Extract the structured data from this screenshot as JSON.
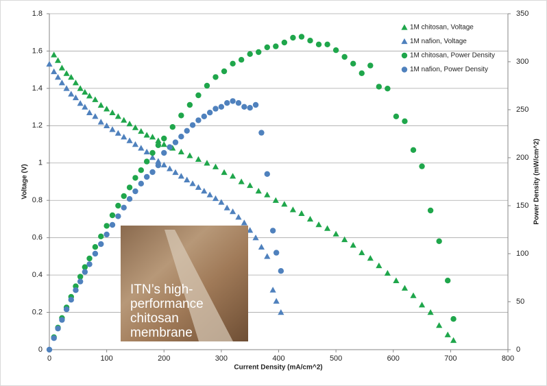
{
  "chart_data": {
    "type": "scatter",
    "xlabel": "Current Density (mA/cm^2)",
    "ylabel": "Voltage (V)",
    "y2label": "Power Density (mW/cm^2)",
    "xlim": [
      0,
      800
    ],
    "xticks": [
      0,
      100,
      200,
      300,
      400,
      500,
      600,
      700,
      800
    ],
    "ylim": [
      0,
      1.8
    ],
    "yticks": [
      0,
      0.2,
      0.4,
      0.6,
      0.8,
      1,
      1.2,
      1.4,
      1.6,
      1.8
    ],
    "y2lim": [
      0,
      350
    ],
    "y2ticks": [
      0,
      50,
      100,
      150,
      200,
      250,
      300,
      350
    ],
    "grid": true,
    "legend": "upper right",
    "annotation": [
      "ITN’s high-",
      "performance",
      "chitosan",
      "membrane"
    ],
    "series": [
      {
        "name": "1M chitosan, Voltage",
        "color": "#1fa64b",
        "marker": "triangle",
        "x": [
          8,
          15,
          22,
          30,
          38,
          46,
          54,
          62,
          70,
          80,
          90,
          100,
          110,
          120,
          130,
          140,
          150,
          160,
          170,
          180,
          190,
          200,
          215,
          230,
          245,
          260,
          275,
          290,
          305,
          320,
          335,
          350,
          365,
          380,
          395,
          410,
          425,
          440,
          455,
          470,
          485,
          500,
          515,
          530,
          545,
          560,
          575,
          590,
          605,
          620,
          635,
          650,
          665,
          680,
          695,
          705
        ],
        "values": [
          1.58,
          1.55,
          1.51,
          1.48,
          1.46,
          1.43,
          1.4,
          1.38,
          1.36,
          1.34,
          1.31,
          1.29,
          1.27,
          1.25,
          1.23,
          1.21,
          1.19,
          1.17,
          1.15,
          1.14,
          1.12,
          1.1,
          1.08,
          1.06,
          1.04,
          1.02,
          1,
          0.98,
          0.95,
          0.93,
          0.9,
          0.88,
          0.85,
          0.83,
          0.8,
          0.78,
          0.75,
          0.73,
          0.7,
          0.67,
          0.65,
          0.62,
          0.59,
          0.56,
          0.52,
          0.49,
          0.45,
          0.41,
          0.37,
          0.33,
          0.29,
          0.24,
          0.2,
          0.13,
          0.08,
          0.05
        ]
      },
      {
        "name": "1M nafion, Voltage",
        "color": "#4f81bd",
        "marker": "triangle",
        "x": [
          0,
          8,
          15,
          22,
          30,
          38,
          46,
          54,
          62,
          70,
          80,
          90,
          100,
          110,
          120,
          130,
          140,
          150,
          160,
          170,
          180,
          190,
          200,
          210,
          220,
          230,
          240,
          250,
          260,
          270,
          280,
          290,
          300,
          310,
          320,
          330,
          340,
          350,
          360,
          370,
          380,
          390,
          396,
          404
        ],
        "values": [
          1.53,
          1.49,
          1.46,
          1.43,
          1.4,
          1.37,
          1.35,
          1.32,
          1.3,
          1.27,
          1.25,
          1.22,
          1.2,
          1.18,
          1.16,
          1.14,
          1.12,
          1.1,
          1.08,
          1.06,
          1.03,
          1.01,
          0.99,
          0.97,
          0.95,
          0.93,
          0.91,
          0.89,
          0.87,
          0.85,
          0.83,
          0.81,
          0.79,
          0.76,
          0.74,
          0.71,
          0.68,
          0.64,
          0.6,
          0.55,
          0.5,
          0.32,
          0.26,
          0.2
        ]
      },
      {
        "name": "1M chitosan, Power Density",
        "color": "#1fa64b",
        "marker": "circle",
        "axis": "y2",
        "x": [
          8,
          15,
          22,
          30,
          38,
          46,
          54,
          62,
          70,
          80,
          90,
          100,
          110,
          120,
          130,
          140,
          150,
          160,
          170,
          180,
          190,
          200,
          215,
          230,
          245,
          260,
          275,
          290,
          305,
          320,
          335,
          350,
          365,
          380,
          395,
          410,
          425,
          440,
          455,
          470,
          485,
          500,
          515,
          530,
          545,
          560,
          575,
          590,
          605,
          620,
          635,
          650,
          665,
          680,
          695,
          705
        ],
        "values": [
          13,
          23,
          33,
          44,
          55,
          66,
          76,
          86,
          95,
          107,
          118,
          129,
          140,
          150,
          160,
          169,
          179,
          187,
          196,
          205,
          213,
          220,
          232,
          244,
          255,
          265,
          275,
          284,
          290,
          298,
          302,
          308,
          310,
          315,
          316,
          320,
          325,
          326,
          322,
          318,
          318,
          312,
          305,
          298,
          288,
          296,
          274,
          272,
          243,
          238,
          208,
          191,
          145,
          113,
          72,
          32
        ]
      },
      {
        "name": "1M nafion, Power Density",
        "color": "#4f81bd",
        "marker": "circle",
        "axis": "y2",
        "x": [
          0,
          8,
          15,
          22,
          30,
          38,
          46,
          54,
          62,
          70,
          80,
          90,
          100,
          110,
          120,
          130,
          140,
          150,
          160,
          170,
          180,
          190,
          200,
          210,
          220,
          230,
          240,
          250,
          260,
          270,
          280,
          290,
          300,
          310,
          320,
          330,
          340,
          350,
          360,
          370,
          380,
          390,
          396,
          404
        ],
        "values": [
          0,
          12,
          22,
          31,
          42,
          52,
          62,
          71,
          81,
          89,
          100,
          110,
          120,
          130,
          139,
          148,
          157,
          165,
          173,
          180,
          185,
          192,
          205,
          211,
          216,
          222,
          228,
          234,
          239,
          243,
          247,
          251,
          253,
          257,
          259,
          257,
          253,
          252,
          255,
          226,
          183,
          124,
          101,
          82
        ]
      }
    ]
  }
}
